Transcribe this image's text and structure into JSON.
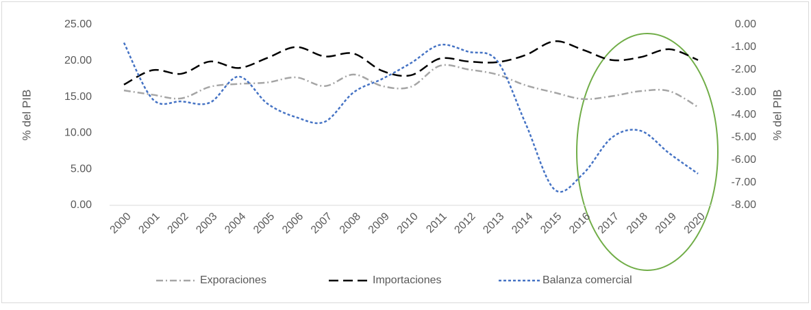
{
  "chart_data": {
    "type": "line",
    "categories": [
      "2000",
      "2001",
      "2002",
      "2003",
      "2004",
      "2005",
      "2006",
      "2007",
      "2008",
      "2009",
      "2010",
      "2011",
      "2012",
      "2013",
      "2014",
      "2015",
      "2016",
      "2017",
      "2018",
      "2019",
      "2020"
    ],
    "y_label": "% del PIB",
    "y2_label": "% del PIB",
    "ylim": [
      0,
      25
    ],
    "yticks": [
      {
        "value": 0,
        "label": "0.00"
      },
      {
        "value": 5,
        "label": "5.00"
      },
      {
        "value": 10,
        "label": "10.00"
      },
      {
        "value": 15,
        "label": "15.00"
      },
      {
        "value": 20,
        "label": "20.00"
      },
      {
        "value": 25,
        "label": "25.00"
      }
    ],
    "y2lim": [
      -8,
      0
    ],
    "y2ticks": [
      {
        "value": 0,
        "label": "0.00"
      },
      {
        "value": -1,
        "label": "-1.00"
      },
      {
        "value": -2,
        "label": "-2.00"
      },
      {
        "value": -3,
        "label": "-3.00"
      },
      {
        "value": -4,
        "label": "-4.00"
      },
      {
        "value": -5,
        "label": "-5.00"
      },
      {
        "value": -6,
        "label": "-6.00"
      },
      {
        "value": -7,
        "label": "-7.00"
      },
      {
        "value": -8,
        "label": "-8.00"
      }
    ],
    "grid": false,
    "legend": "bottom",
    "series": [
      {
        "name": "Exporaciones",
        "color": "#a5a5a5",
        "dash": "dashdot",
        "values": [
          15.9,
          15.3,
          14.8,
          16.4,
          16.8,
          17.0,
          17.7,
          16.5,
          18.1,
          16.5,
          16.4,
          19.3,
          18.8,
          18.1,
          16.6,
          15.6,
          14.7,
          15.1,
          15.8,
          15.8,
          13.6
        ]
      },
      {
        "name": "Importaciones",
        "color": "#000000",
        "dash": "dash",
        "values": [
          16.7,
          18.7,
          18.2,
          19.9,
          19.0,
          20.4,
          21.9,
          20.6,
          21.0,
          18.6,
          18.0,
          20.3,
          19.9,
          19.8,
          20.8,
          22.7,
          21.5,
          20.1,
          20.5,
          21.6,
          20.1
        ]
      },
      {
        "name": "Balanza comercial",
        "color": "#4472c4",
        "dash": "dot",
        "axis": "y2",
        "values": [
          -0.8,
          -3.3,
          -3.4,
          -3.45,
          -2.3,
          -3.5,
          -4.1,
          -4.3,
          -3.0,
          -2.4,
          -1.7,
          -0.9,
          -1.2,
          -1.6,
          -4.4,
          -7.3,
          -6.6,
          -5.0,
          -4.7,
          -5.7,
          -6.6
        ]
      }
    ]
  }
}
